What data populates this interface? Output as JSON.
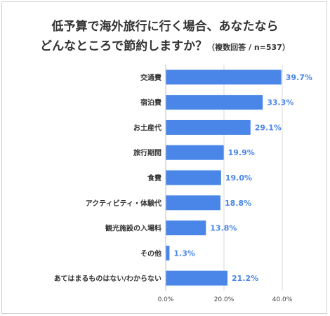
{
  "header": {
    "title_line1": "低予算で海外旅行に行く場合、あなたなら",
    "title_line2": "どんなところで節約しますか？",
    "note": "（複数回答 / n=537）"
  },
  "chart_data": {
    "type": "bar",
    "orientation": "horizontal",
    "title": "低予算で海外旅行に行く場合、あなたならどんなところで節約しますか？",
    "subtitle": "（複数回答 / n=537）",
    "categories": [
      "交通費",
      "宿泊費",
      "お土産代",
      "旅行期間",
      "食費",
      "アクティビティ・体験代",
      "観光施設の入場料",
      "その他",
      "あてはまるものはない/わからない"
    ],
    "values": [
      39.7,
      33.3,
      29.1,
      19.9,
      19.0,
      18.8,
      13.8,
      1.3,
      21.2
    ],
    "value_labels": [
      "39.7%",
      "33.3%",
      "29.1%",
      "19.9%",
      "19.0%",
      "18.8%",
      "13.8%",
      "1.3%",
      "21.2%"
    ],
    "xlim": [
      0,
      40
    ],
    "xticks": [
      0,
      20,
      40
    ],
    "xtick_labels": [
      "0.0%",
      "20.0%",
      "40.0%"
    ],
    "grid": true,
    "bar_color": "#4a86e8",
    "label_color": "#4a86e8"
  }
}
